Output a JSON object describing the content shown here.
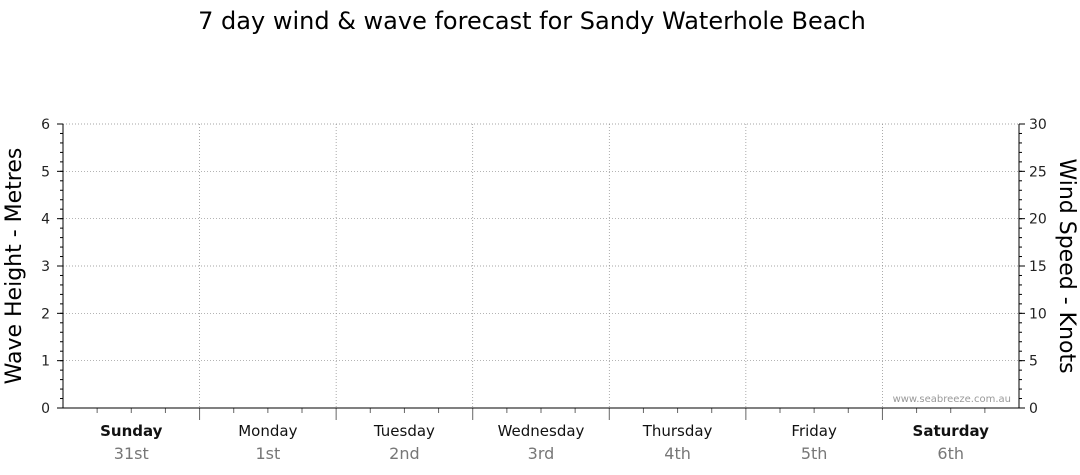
{
  "chart_data": {
    "type": "line",
    "title": "7 day wind & wave forecast for Sandy Waterhole Beach",
    "ylabel_left": "Wave Height - Metres",
    "ylabel_right": "Wind Speed - Knots",
    "ylim_left": [
      0,
      6
    ],
    "ylim_right": [
      0,
      30
    ],
    "yticks_left": [
      "0",
      "1",
      "2",
      "3",
      "4",
      "5",
      "6"
    ],
    "yticks_right": [
      "0",
      "5",
      "10",
      "15",
      "20",
      "25",
      "30"
    ],
    "grid": true,
    "days": [
      {
        "day": "Sunday",
        "date": "31st",
        "weekend": true
      },
      {
        "day": "Monday",
        "date": "1st",
        "weekend": false
      },
      {
        "day": "Tuesday",
        "date": "2nd",
        "weekend": false
      },
      {
        "day": "Wednesday",
        "date": "3rd",
        "weekend": false
      },
      {
        "day": "Thursday",
        "date": "4th",
        "weekend": false
      },
      {
        "day": "Friday",
        "date": "5th",
        "weekend": false
      },
      {
        "day": "Saturday",
        "date": "6th",
        "weekend": true
      }
    ],
    "series": []
  },
  "watermark": "www.seabreeze.com.au",
  "colors": {
    "grid": "#888888",
    "axis": "#000000",
    "date": "#777777"
  }
}
